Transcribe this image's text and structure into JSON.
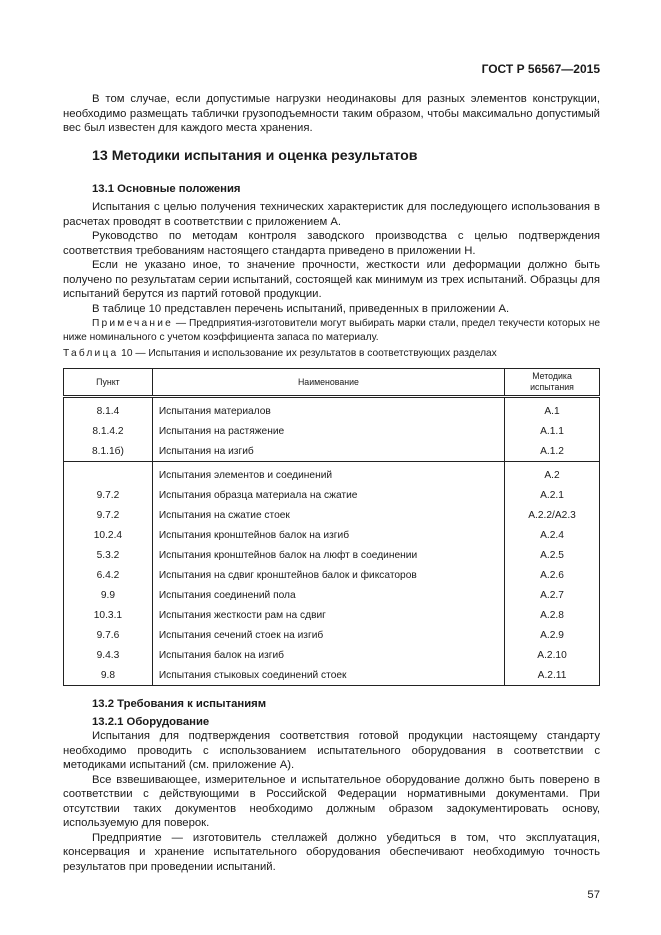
{
  "header": {
    "doc_id": "ГОСТ Р 56567—2015"
  },
  "intro_paragraph": "В том случае, если допустимые нагрузки неодинаковы для разных элементов конструкции, необходимо размещать таблички грузоподъемности таким образом, чтобы максимально допустимый вес был известен для каждого места хранения.",
  "section13": {
    "title": "13 Методики испытания и оценка результатов",
    "sub1": {
      "title": "13.1 Основные положения",
      "paragraphs": [
        "Испытания с целью получения технических характеристик для последующего использования в расчетах проводят в соответствии с приложением А.",
        "Руководство по методам контроля заводского производства с целью подтверждения соответствия требованиям настоящего стандарта приведено в приложении Н.",
        "Если не указано иное, то значение прочности, жесткости или деформации должно быть получено по результатам серии испытаний, состоящей как минимум из трех испытаний. Образцы для испытаний берутся из партий готовой продукции.",
        "В таблице 10 представлен перечень испытаний, приведенных в приложении А."
      ],
      "note_label": "Примечание",
      "note_text": " — Предприятия-изготовители могут выбирать марки стали, предел текучести которых не ниже номинального с учетом коэффициента запаса по материалу."
    },
    "table": {
      "caption_label": "Таблица",
      "caption_text": " 10 — Испытания и использование их результатов в соответствующих разделах",
      "headers": [
        "Пункт",
        "Наименование",
        "Методика испытания"
      ],
      "groups": [
        [
          [
            "8.1.4",
            "Испытания материалов",
            "A.1"
          ],
          [
            "8.1.4.2",
            "Испытания на растяжение",
            "A.1.1"
          ],
          [
            "8.1.1б)",
            "Испытания на изгиб",
            "A.1.2"
          ]
        ],
        [
          [
            "",
            "Испытания элементов и соединений",
            "A.2"
          ],
          [
            "9.7.2",
            "Испытания образца материала на сжатие",
            "A.2.1"
          ],
          [
            "9.7.2",
            "Испытания на сжатие стоек",
            "A.2.2/A2.3"
          ],
          [
            "10.2.4",
            "Испытания кронштейнов балок на изгиб",
            "A.2.4"
          ],
          [
            "5.3.2",
            "Испытания кронштейнов балок на люфт в соединении",
            "A.2.5"
          ],
          [
            "6.4.2",
            "Испытания на сдвиг кронштейнов балок и фиксаторов",
            "A.2.6"
          ],
          [
            "9.9",
            "Испытания соединений пола",
            "A.2.7"
          ],
          [
            "10.3.1",
            "Испытания жесткости рам на сдвиг",
            "A.2.8"
          ],
          [
            "9.7.6",
            "Испытания сечений стоек на изгиб",
            "A.2.9"
          ],
          [
            "9.4.3",
            "Испытания балок на изгиб",
            "A.2.10"
          ],
          [
            "9.8",
            "Испытания стыковых соединений стоек",
            "A.2.11"
          ]
        ]
      ]
    },
    "sub2": {
      "title": "13.2 Требования к испытаниям",
      "sub1_title": "13.2.1 Оборудование",
      "paragraphs": [
        "Испытания для подтверждения соответствия готовой продукции настоящему стандарту необходимо проводить с использованием испытательного оборудования в соответствии с методиками испытаний (см. приложение А).",
        "Все взвешивающее, измерительное и испытательное оборудование должно быть поверено в соответствии с действующими в Российской Федерации нормативными документами. При отсутствии таких документов необходимо должным образом задокументировать основу, используемую для поверок.",
        "Предприятие — изготовитель стеллажей должно убедиться в том, что эксплуатация, консервация и хранение испытательного оборудования обеспечивают необходимую точность результатов при проведении испытаний."
      ]
    }
  },
  "page_number": "57"
}
